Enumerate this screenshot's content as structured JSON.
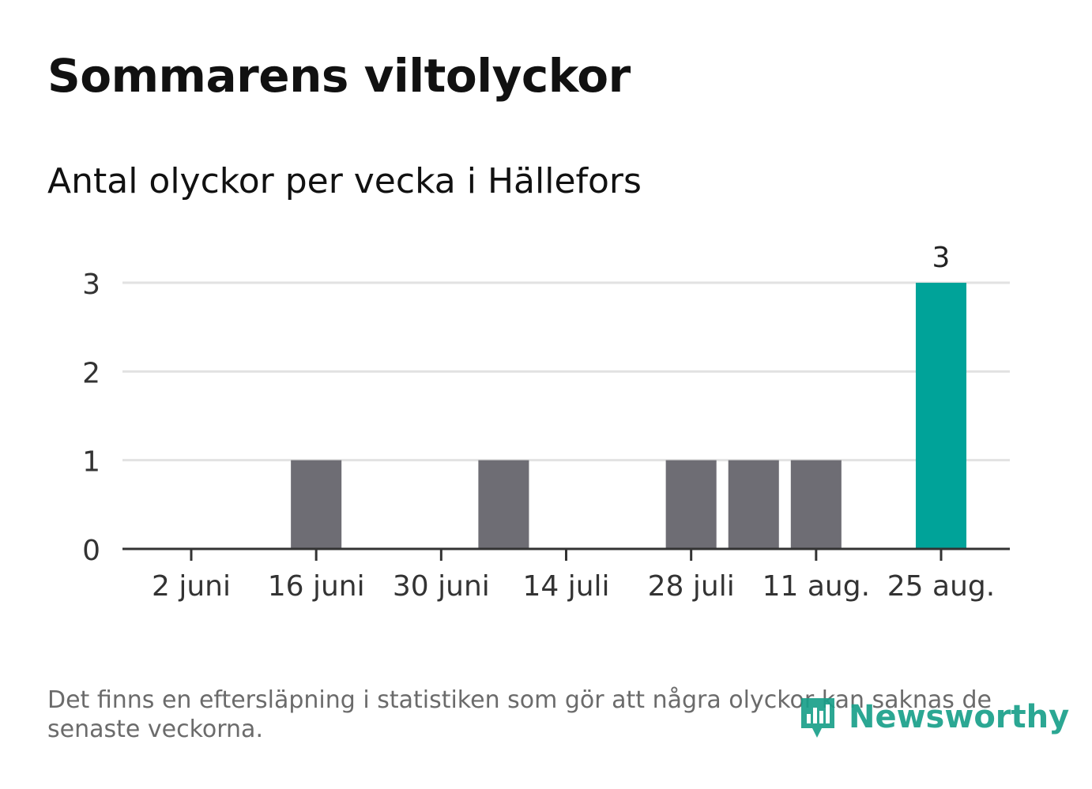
{
  "title": "Sommarens viltolyckor",
  "subtitle": "Antal olyckor per vecka i Hällefors",
  "note": "Det finns en eftersläpning i statistiken som gör att några olyckor kan saknas de senaste veckorna.",
  "logo_text": "Newsworthy",
  "colors": {
    "bar": "#6e6d74",
    "highlight": "#00a399",
    "grid": "#e2e2e2",
    "axis": "#333333",
    "text": "#333333"
  },
  "chart_data": {
    "type": "bar",
    "title": "Sommarens viltolyckor",
    "subtitle": "Antal olyckor per vecka i Hällefors",
    "categories": [
      "2 juni",
      "9 juni",
      "16 juni",
      "23 juni",
      "30 juni",
      "7 juli",
      "14 juli",
      "21 juli",
      "28 juli",
      "4 aug.",
      "11 aug.",
      "18 aug.",
      "25 aug."
    ],
    "values": [
      0,
      0,
      1,
      0,
      0,
      1,
      0,
      0,
      1,
      1,
      1,
      0,
      3
    ],
    "x_tick_labels": [
      "2 juni",
      "16 juni",
      "30 juni",
      "14 juli",
      "28 juli",
      "11 aug.",
      "25 aug."
    ],
    "highlight_index": 12,
    "data_labels": [
      {
        "index": 12,
        "text": "3"
      }
    ],
    "yticks": [
      0,
      1,
      2,
      3
    ],
    "ylim": [
      0,
      3
    ],
    "grid": true,
    "xlabel": "",
    "ylabel": ""
  }
}
